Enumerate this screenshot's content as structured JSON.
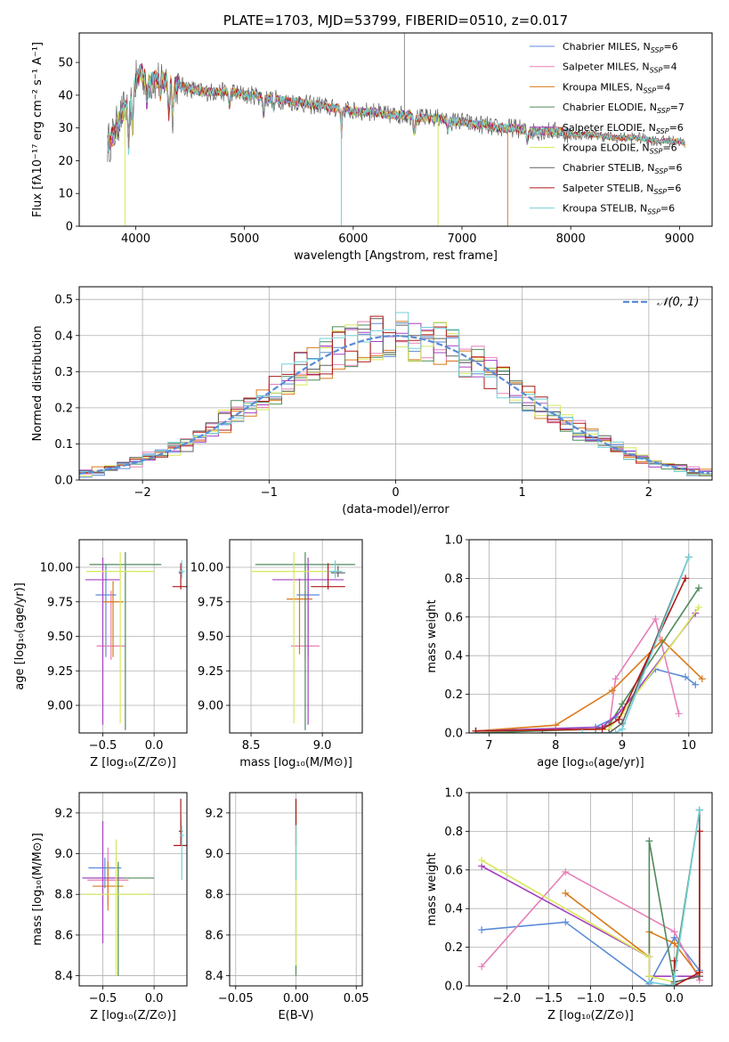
{
  "colors": {
    "chabrier_miles": "#5b8bd6",
    "salpeter_miles": "#e680b8",
    "kroupa_miles": "#d97a1a",
    "chabrier_elodie": "#4f8a5c",
    "salpeter_elodie": "#a640c0",
    "kroupa_elodie": "#d8e85a",
    "chabrier_stelib": "#606060",
    "salpeter_stelib": "#b01818",
    "kroupa_stelib": "#72d0d8",
    "normal": "#5b8bd6"
  },
  "chart_data": [
    {
      "id": "spectrum",
      "type": "line",
      "title": "PLATE=1703, MJD=53799, FIBERID=0510, z=0.017",
      "xlabel": "wavelength [Angstrom, rest frame]",
      "ylabel": "Flux [fλ10⁻¹⁷ erg cm⁻² s⁻¹ A⁻¹]",
      "xlim": [
        3480,
        9300
      ],
      "ylim": [
        0,
        59
      ],
      "xticks": [
        "4000",
        "5000",
        "6000",
        "7000",
        "8000",
        "9000"
      ],
      "yticks": [
        "0",
        "10",
        "20",
        "30",
        "40",
        "50"
      ],
      "legend_position": "top-right",
      "grid": false,
      "continuum": {
        "x": [
          3740,
          3800,
          3850,
          3900,
          3950,
          4000,
          4050,
          4100,
          4150,
          4200,
          4300,
          4400,
          4500,
          4600,
          4700,
          4800,
          4900,
          5000,
          5100,
          5200,
          5300,
          5400,
          5500,
          5600,
          5700,
          5800,
          5900,
          6000,
          6100,
          6200,
          6300,
          6400,
          6500,
          6600,
          6700,
          6800,
          6900,
          7000,
          7100,
          7200,
          7300,
          7400,
          7500,
          7600,
          7700,
          7800,
          7900,
          8000,
          8200,
          8400,
          8600,
          8800,
          9000,
          9050
        ],
        "y": [
          25,
          28,
          33,
          36,
          38,
          44,
          47,
          45,
          44,
          45,
          44,
          43,
          42,
          41,
          41,
          41,
          41,
          40,
          40,
          39,
          39,
          38,
          38,
          37,
          37,
          36,
          36,
          35,
          35,
          35,
          34,
          34,
          34,
          33,
          33,
          33,
          32,
          32,
          31,
          31,
          30,
          30,
          30,
          29,
          29,
          29,
          29,
          28,
          28,
          27,
          27,
          26,
          26,
          25
        ]
      },
      "series": [
        {
          "name": "Chabrier MILES, N",
          "sub": "SSP",
          "suffix": "=6",
          "color_key": "chabrier_miles"
        },
        {
          "name": "Salpeter MILES, N",
          "sub": "SSP",
          "suffix": "=4",
          "color_key": "salpeter_miles"
        },
        {
          "name": "Kroupa MILES, N",
          "sub": "SSP",
          "suffix": "=4",
          "color_key": "kroupa_miles"
        },
        {
          "name": "Chabrier ELODIE, N",
          "sub": "SSP",
          "suffix": "=7",
          "color_key": "chabrier_elodie"
        },
        {
          "name": "Salpeter ELODIE, N",
          "sub": "SSP",
          "suffix": "=6",
          "color_key": "salpeter_elodie"
        },
        {
          "name": "Kroupa ELODIE, N",
          "sub": "SSP",
          "suffix": "=6",
          "color_key": "kroupa_elodie"
        },
        {
          "name": "Chabrier STELIB, N",
          "sub": "SSP",
          "suffix": "=6",
          "color_key": "chabrier_stelib"
        },
        {
          "name": "Salpeter STELIB, N",
          "sub": "SSP",
          "suffix": "=6",
          "color_key": "salpeter_stelib"
        },
        {
          "name": "Kroupa STELIB, N",
          "sub": "SSP",
          "suffix": "=6",
          "color_key": "kroupa_stelib"
        }
      ],
      "drops": [
        {
          "x": 3900,
          "color_key": "kroupa_elodie"
        },
        {
          "x": 5890,
          "color_key": "kroupa_stelib"
        },
        {
          "x": 6780,
          "color_key": "kroupa_elodie"
        },
        {
          "x": 7420,
          "color_key": "kroupa_miles"
        }
      ],
      "spikes": [
        {
          "x": 6470,
          "y": 62,
          "color_key": "chabrier_stelib"
        }
      ]
    },
    {
      "id": "residuals",
      "type": "bar",
      "xlabel": "(data-model)/error",
      "ylabel": "Normed distribution",
      "xlim": [
        -2.5,
        2.5
      ],
      "ylim": [
        0,
        0.535
      ],
      "xticks": [
        -2,
        -1,
        0,
        1,
        2
      ],
      "xtick_labels": [
        "−2",
        "−1",
        "0",
        "1",
        "2"
      ],
      "yticks": [
        0,
        0.1,
        0.2,
        0.3,
        0.4,
        0.5
      ],
      "ytick_labels": [
        "0.0",
        "0.1",
        "0.2",
        "0.3",
        "0.4",
        "0.5"
      ],
      "grid": true,
      "legend_position": "top-right",
      "normal_label": "𝒩(0, 1)",
      "bin_start": -2.5,
      "bin_width": 0.1
    },
    {
      "id": "age_vs_z",
      "type": "scatter",
      "xlabel": "Z [log₁₀(Z/Z⊙)]",
      "ylabel": "age  [log₁₀(age/yr)]",
      "xlim": [
        -0.73,
        0.32
      ],
      "ylim": [
        8.8,
        10.2
      ],
      "xticks": [
        -0.5,
        0.0
      ],
      "xtick_labels": [
        "−0.5",
        "0.0"
      ],
      "yticks": [
        9.0,
        9.25,
        9.5,
        9.75,
        10.0
      ],
      "ytick_labels": [
        "9.00",
        "9.25",
        "9.50",
        "9.75",
        "10.00"
      ],
      "grid": true,
      "points": [
        {
          "x": -0.47,
          "y": 9.8,
          "xe": 0.1,
          "ye": [
            0.45,
            0.22
          ],
          "color_key": "chabrier_miles"
        },
        {
          "x": -0.42,
          "y": 9.43,
          "xe": 0.14,
          "ye": [
            0.1,
            0.4
          ],
          "color_key": "salpeter_miles"
        },
        {
          "x": -0.4,
          "y": 9.75,
          "xe": 0.1,
          "ye": [
            0.4,
            0.15
          ],
          "color_key": "kroupa_miles"
        },
        {
          "x": -0.28,
          "y": 10.02,
          "xe": 0.35,
          "ye": [
            1.2,
            0.09
          ],
          "color_key": "chabrier_elodie"
        },
        {
          "x": -0.5,
          "y": 9.91,
          "xe": 0.17,
          "ye": [
            1.05,
            0.16
          ],
          "color_key": "salpeter_elodie"
        },
        {
          "x": -0.33,
          "y": 9.97,
          "xe": 0.33,
          "ye": [
            1.1,
            0.14
          ],
          "color_key": "kroupa_elodie"
        },
        {
          "x": 0.26,
          "y": 9.96,
          "xe": 0.02,
          "ye": [
            0.03,
            0.05
          ],
          "color_key": "chabrier_stelib"
        },
        {
          "x": 0.26,
          "y": 9.86,
          "xe": 0.08,
          "ye": [
            0.02,
            0.17
          ],
          "color_key": "salpeter_stelib"
        },
        {
          "x": 0.27,
          "y": 9.97,
          "xe": 0.03,
          "ye": [
            0.05,
            0.08
          ],
          "color_key": "kroupa_stelib"
        }
      ]
    },
    {
      "id": "age_vs_mass",
      "type": "scatter",
      "xlabel": "mass [log₁₀(M/M⊙)]",
      "ylabel": "",
      "xlim": [
        8.35,
        9.28
      ],
      "ylim": [
        8.8,
        10.2
      ],
      "xticks": [
        8.5,
        9.0
      ],
      "xtick_labels": [
        "8.5",
        "9.0"
      ],
      "yticks": [
        9.0,
        9.25,
        9.5,
        9.75,
        10.0
      ],
      "ytick_labels": [
        "9.00",
        "9.25",
        "9.50",
        "9.75",
        "10.00"
      ],
      "grid": true,
      "points": [
        {
          "x": 8.9,
          "y": 9.8,
          "xe": 0.08,
          "ye": [
            0.45,
            0.22
          ],
          "color_key": "chabrier_miles"
        },
        {
          "x": 8.88,
          "y": 9.43,
          "xe": 0.1,
          "ye": [
            0.1,
            0.4
          ],
          "color_key": "salpeter_miles"
        },
        {
          "x": 8.84,
          "y": 9.77,
          "xe": 0.09,
          "ye": [
            0.4,
            0.15
          ],
          "color_key": "kroupa_miles"
        },
        {
          "x": 8.88,
          "y": 10.02,
          "xe": 0.35,
          "ye": [
            1.2,
            0.09
          ],
          "color_key": "chabrier_elodie"
        },
        {
          "x": 8.9,
          "y": 9.91,
          "xe": 0.25,
          "ye": [
            1.05,
            0.16
          ],
          "color_key": "salpeter_elodie"
        },
        {
          "x": 8.8,
          "y": 9.97,
          "xe": 0.3,
          "ye": [
            1.1,
            0.14
          ],
          "color_key": "kroupa_elodie"
        },
        {
          "x": 9.11,
          "y": 9.96,
          "xe": 0.05,
          "ye": [
            0.03,
            0.05
          ],
          "color_key": "chabrier_stelib"
        },
        {
          "x": 9.04,
          "y": 9.86,
          "xe": 0.12,
          "ye": [
            0.02,
            0.17
          ],
          "color_key": "salpeter_stelib"
        },
        {
          "x": 9.09,
          "y": 9.97,
          "xe": 0.05,
          "ye": [
            0.05,
            0.08
          ],
          "color_key": "kroupa_stelib"
        }
      ]
    },
    {
      "id": "mass_weight_vs_age",
      "type": "line",
      "xlabel": "age  [log₁₀(age/yr)]",
      "ylabel": "mass weight",
      "xlim": [
        6.7,
        10.35
      ],
      "ylim": [
        0,
        1.0
      ],
      "xticks": [
        7,
        8,
        9,
        10
      ],
      "xtick_labels": [
        "7",
        "8",
        "9",
        "10"
      ],
      "yticks": [
        0,
        0.2,
        0.4,
        0.6,
        0.8,
        1.0
      ],
      "ytick_labels": [
        "0.0",
        "0.2",
        "0.4",
        "0.6",
        "0.8",
        "1.0"
      ],
      "grid": true,
      "series": [
        {
          "color_key": "chabrier_miles",
          "x": [
            6.8,
            8.6,
            8.9,
            9.5,
            9.95,
            10.1
          ],
          "y": [
            0.01,
            0.03,
            0.08,
            0.33,
            0.29,
            0.25
          ]
        },
        {
          "color_key": "salpeter_miles",
          "x": [
            8.8,
            8.9,
            9.5,
            9.85
          ],
          "y": [
            0.02,
            0.28,
            0.59,
            0.1
          ]
        },
        {
          "color_key": "kroupa_miles",
          "x": [
            6.8,
            8.0,
            8.85,
            9.6,
            10.2
          ],
          "y": [
            0.01,
            0.04,
            0.22,
            0.48,
            0.28
          ]
        },
        {
          "color_key": "chabrier_elodie",
          "x": [
            6.8,
            8.6,
            8.8,
            9.0,
            10.15
          ],
          "y": [
            0.0,
            0.02,
            0.04,
            0.15,
            0.75
          ]
        },
        {
          "color_key": "salpeter_elodie",
          "x": [
            6.8,
            8.7,
            9.0,
            10.1
          ],
          "y": [
            0.01,
            0.03,
            0.12,
            0.62
          ]
        },
        {
          "color_key": "kroupa_elodie",
          "x": [
            6.8,
            8.8,
            9.0,
            10.15
          ],
          "y": [
            0.01,
            0.02,
            0.1,
            0.65
          ]
        },
        {
          "color_key": "chabrier_stelib",
          "x": [
            7.8,
            8.8,
            9.0,
            10.0
          ],
          "y": [
            0.0,
            0.0,
            0.05,
            0.91
          ]
        },
        {
          "color_key": "salpeter_stelib",
          "x": [
            6.8,
            8.7,
            8.95,
            9.95
          ],
          "y": [
            0.01,
            0.02,
            0.07,
            0.8
          ]
        },
        {
          "color_key": "kroupa_stelib",
          "x": [
            8.4,
            8.9,
            9.0,
            10.0
          ],
          "y": [
            0.0,
            0.0,
            0.02,
            0.91
          ]
        }
      ]
    },
    {
      "id": "mass_vs_z",
      "type": "scatter",
      "xlabel": "Z [log₁₀(Z/Z⊙)]",
      "ylabel": "mass [log₁₀(M/M⊙)]",
      "xlim": [
        -0.73,
        0.32
      ],
      "ylim": [
        8.35,
        9.3
      ],
      "xticks": [
        -0.5,
        0.0
      ],
      "xtick_labels": [
        "−0.5",
        "0.0"
      ],
      "yticks": [
        8.4,
        8.6,
        8.8,
        9.0,
        9.2
      ],
      "ytick_labels": [
        "8.4",
        "8.6",
        "8.8",
        "9.0",
        "9.2"
      ],
      "grid": true,
      "points": [
        {
          "x": -0.48,
          "y": 8.93,
          "xe": 0.16,
          "ye": [
            0.1,
            0.05
          ],
          "color_key": "chabrier_miles"
        },
        {
          "x": -0.45,
          "y": 8.87,
          "xe": 0.2,
          "ye": [
            0.12,
            0.16
          ],
          "color_key": "salpeter_miles"
        },
        {
          "x": -0.45,
          "y": 8.84,
          "xe": 0.15,
          "ye": [
            0.12,
            0.12
          ],
          "color_key": "kroupa_miles"
        },
        {
          "x": -0.35,
          "y": 8.88,
          "xe": 0.35,
          "ye": [
            0.48,
            0.08
          ],
          "color_key": "chabrier_elodie"
        },
        {
          "x": -0.5,
          "y": 8.88,
          "xe": 0.2,
          "ye": [
            0.32,
            0.28
          ],
          "color_key": "salpeter_elodie"
        },
        {
          "x": -0.37,
          "y": 8.8,
          "xe": 0.33,
          "ye": [
            0.4,
            0.27
          ],
          "color_key": "kroupa_elodie"
        },
        {
          "x": 0.26,
          "y": 9.11,
          "xe": 0.02,
          "ye": [
            0.04,
            0.06
          ],
          "color_key": "chabrier_stelib"
        },
        {
          "x": 0.26,
          "y": 9.04,
          "xe": 0.07,
          "ye": [
            0.0,
            0.23
          ],
          "color_key": "salpeter_stelib"
        },
        {
          "x": 0.27,
          "y": 9.09,
          "xe": 0.02,
          "ye": [
            0.22,
            0.05
          ],
          "color_key": "kroupa_stelib"
        }
      ]
    },
    {
      "id": "mass_vs_ebv",
      "type": "scatter",
      "xlabel": "E(B-V)",
      "ylabel": "",
      "xlim": [
        -0.055,
        0.055
      ],
      "ylim": [
        8.35,
        9.3
      ],
      "xticks": [
        -0.05,
        0.0,
        0.05
      ],
      "xtick_labels": [
        "−0.05",
        "0.00",
        "0.05"
      ],
      "yticks": [
        8.4,
        8.6,
        8.8,
        9.0,
        9.2
      ],
      "ytick_labels": [
        "8.4",
        "8.6",
        "8.8",
        "9.0",
        "9.2"
      ],
      "grid": true,
      "points": [
        {
          "x": 0.0,
          "y": 8.88,
          "xe": 0.0,
          "ye": [
            0.48,
            0.38
          ],
          "color_key": "chabrier_elodie"
        },
        {
          "x": 0.0,
          "y": 8.85,
          "xe": 0.0,
          "ye": [
            0.4,
            0.38
          ],
          "color_key": "kroupa_elodie"
        },
        {
          "x": 0.0,
          "y": 9.04,
          "xe": 0.0,
          "ye": [
            0.0,
            0.23
          ],
          "color_key": "salpeter_stelib"
        },
        {
          "x": 0.0,
          "y": 9.09,
          "xe": 0.0,
          "ye": [
            0.22,
            0.05
          ],
          "color_key": "kroupa_stelib"
        }
      ]
    },
    {
      "id": "mass_weight_vs_z",
      "type": "line",
      "xlabel": "Z [log₁₀(Z/Z⊙)]",
      "ylabel": "mass weight",
      "xlim": [
        -2.45,
        0.45
      ],
      "ylim": [
        0,
        1.0
      ],
      "xticks": [
        -2.0,
        -1.5,
        -1.0,
        -0.5,
        0.0
      ],
      "xtick_labels": [
        "−2.0",
        "−1.5",
        "−1.0",
        "−0.5",
        "0.0"
      ],
      "yticks": [
        0,
        0.2,
        0.4,
        0.6,
        0.8,
        1.0
      ],
      "ytick_labels": [
        "0.0",
        "0.2",
        "0.4",
        "0.6",
        "0.8",
        "1.0"
      ],
      "grid": true,
      "series": [
        {
          "color_key": "chabrier_miles",
          "x": [
            -2.3,
            -1.3,
            -0.3,
            0.0,
            0.3
          ],
          "y": [
            0.29,
            0.33,
            0.01,
            0.25,
            0.08
          ]
        },
        {
          "color_key": "salpeter_miles",
          "x": [
            -2.3,
            -1.3,
            0.0,
            0.3
          ],
          "y": [
            0.1,
            0.59,
            0.28,
            0.03
          ]
        },
        {
          "color_key": "kroupa_miles",
          "x": [
            -1.3,
            -0.3,
            -0.3,
            0.0,
            0.3
          ],
          "y": [
            0.48,
            0.15,
            0.28,
            0.22,
            0.05
          ]
        },
        {
          "color_key": "chabrier_elodie",
          "x": [
            -0.3,
            -0.3,
            0.0,
            0.0,
            0.3
          ],
          "y": [
            0.05,
            0.75,
            0.01,
            0.08,
            0.91
          ]
        },
        {
          "color_key": "salpeter_elodie",
          "x": [
            -2.3,
            -0.3,
            -0.3,
            0.3
          ],
          "y": [
            0.62,
            0.15,
            0.05,
            0.05
          ]
        },
        {
          "color_key": "kroupa_elodie",
          "x": [
            -2.3,
            -0.3,
            -0.3,
            0.0
          ],
          "y": [
            0.65,
            0.15,
            0.05,
            0.02
          ]
        },
        {
          "color_key": "chabrier_stelib",
          "x": [
            0.0,
            0.3,
            0.3
          ],
          "y": [
            0.02,
            0.05,
            0.91
          ]
        },
        {
          "color_key": "salpeter_stelib",
          "x": [
            0.0,
            0.0,
            0.3,
            0.3
          ],
          "y": [
            0.13,
            0.0,
            0.07,
            0.8
          ]
        },
        {
          "color_key": "kroupa_stelib",
          "x": [
            -0.3,
            0.0,
            0.0,
            0.3
          ],
          "y": [
            0.02,
            0.0,
            0.05,
            0.91
          ]
        }
      ]
    }
  ]
}
